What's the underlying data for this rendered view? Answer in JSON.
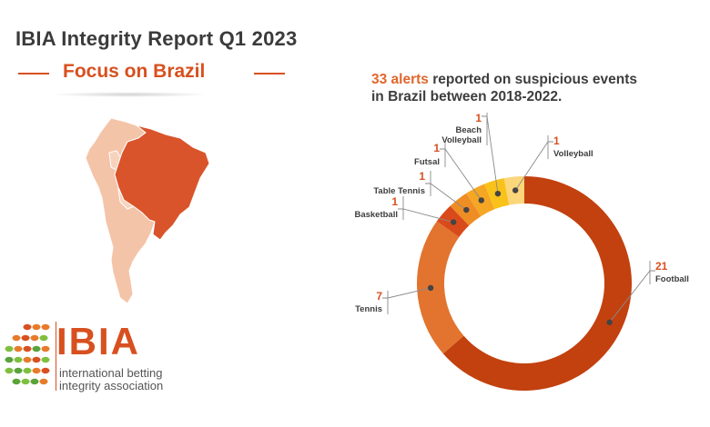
{
  "report_title": "IBIA Integrity Report Q1 2023",
  "subtitle": "Focus on Brazil",
  "headline": {
    "highlight": "33 alerts",
    "rest_line1": " reported on suspicious events",
    "line2": "in Brazil between 2018-2022."
  },
  "logo": {
    "name": "IBIA",
    "line1": "international betting",
    "line2": "integrity association"
  },
  "colors": {
    "accent": "#d8501f",
    "brazil": "#d9542a",
    "south_america": "#f4c4a8"
  },
  "chart_data": {
    "type": "pie",
    "variant": "donut",
    "total": 33,
    "slices": [
      {
        "label": "Football",
        "label_lines": [
          "Football"
        ],
        "value": 21,
        "color": "#c2410f"
      },
      {
        "label": "Tennis",
        "label_lines": [
          "Tennis"
        ],
        "value": 7,
        "color": "#e2742f"
      },
      {
        "label": "Basketball",
        "label_lines": [
          "Basketball"
        ],
        "value": 1,
        "color": "#d94a1a"
      },
      {
        "label": "Table Tennis",
        "label_lines": [
          "Table Tennis"
        ],
        "value": 1,
        "color": "#ef8d25"
      },
      {
        "label": "Futsal",
        "label_lines": [
          "Futsal"
        ],
        "value": 1,
        "color": "#f5a623"
      },
      {
        "label": "Beach Volleyball",
        "label_lines": [
          "Beach",
          "Volleyball"
        ],
        "value": 1,
        "color": "#f9c21a"
      },
      {
        "label": "Volleyball",
        "label_lines": [
          "Volleyball"
        ],
        "value": 1,
        "color": "#fbd67a"
      }
    ]
  }
}
